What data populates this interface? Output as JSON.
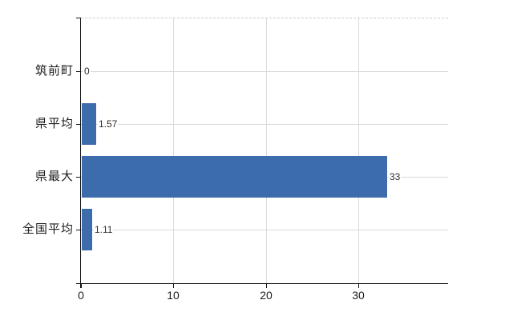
{
  "chart_data": {
    "type": "bar",
    "orientation": "horizontal",
    "title": "",
    "categories": [
      "筑前町",
      "県平均",
      "県最大",
      "全国平均"
    ],
    "values": [
      0,
      1.57,
      33,
      1.11
    ],
    "value_labels": [
      "0",
      "1.57",
      "33",
      "1.11"
    ],
    "x_ticks": [
      0,
      10,
      20,
      30
    ],
    "x_tick_labels": [
      "0",
      "10",
      "20",
      "30"
    ],
    "xlim": [
      0,
      39.7
    ],
    "grid": true,
    "legend_position": "none",
    "colors": {
      "bar": "#3d6cad",
      "axis": "#151515",
      "h_grid": "#d4dcd2",
      "v_grid": "#dbdbdb",
      "top_border": "#d2cdd2",
      "category_text": "#1c1c1c",
      "tick_text": "#1c1c1c",
      "value_text": "#2e2e2e"
    }
  }
}
